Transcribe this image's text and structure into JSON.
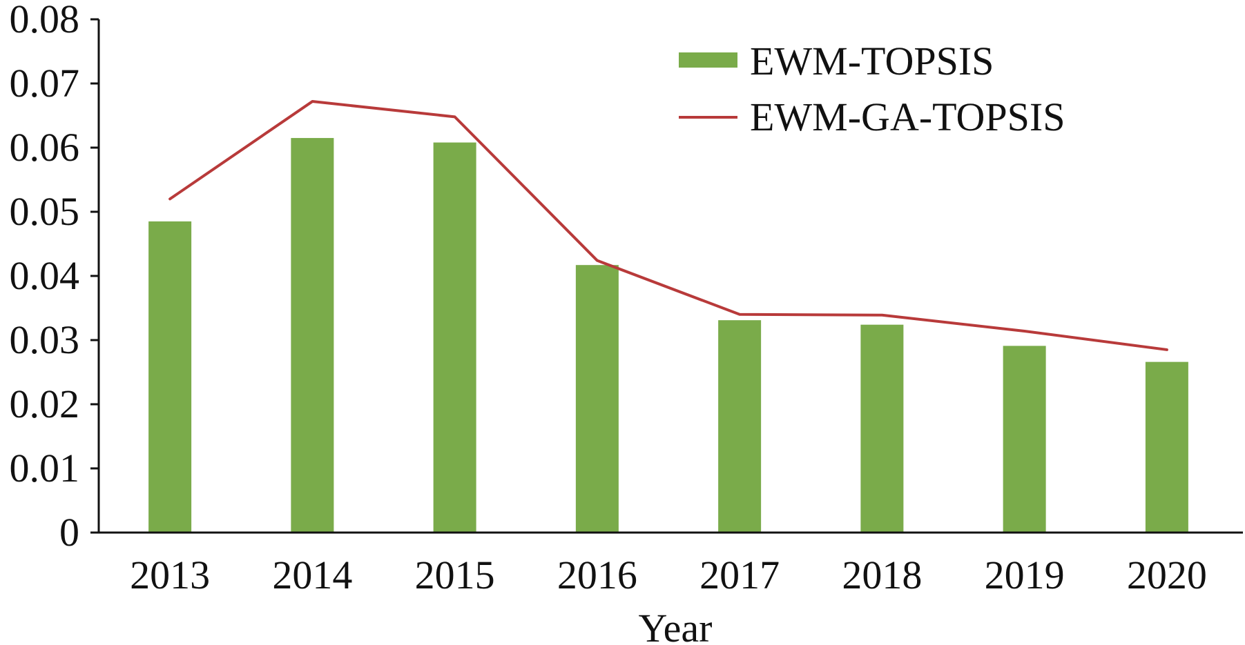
{
  "chart_data": {
    "type": "bar",
    "categories": [
      "2013",
      "2014",
      "2015",
      "2016",
      "2017",
      "2018",
      "2019",
      "2020"
    ],
    "series": [
      {
        "name": "EWM-TOPSIS",
        "type": "bar",
        "color": "#7aab4a",
        "values": [
          0.0485,
          0.0615,
          0.0608,
          0.0417,
          0.0331,
          0.0324,
          0.0291,
          0.0266
        ]
      },
      {
        "name": "EWM-GA-TOPSIS",
        "type": "line",
        "color": "#b83a3a",
        "values": [
          0.052,
          0.0672,
          0.0648,
          0.0424,
          0.034,
          0.0339,
          0.0314,
          0.0285
        ]
      }
    ],
    "xlabel": "Year",
    "ylabel": "",
    "ylim": [
      0,
      0.08
    ],
    "yticks": [
      "0",
      "0.01",
      "0.02",
      "0.03",
      "0.04",
      "0.05",
      "0.06",
      "0.07",
      "0.08"
    ],
    "grid": false,
    "legend_position": "top-right"
  }
}
